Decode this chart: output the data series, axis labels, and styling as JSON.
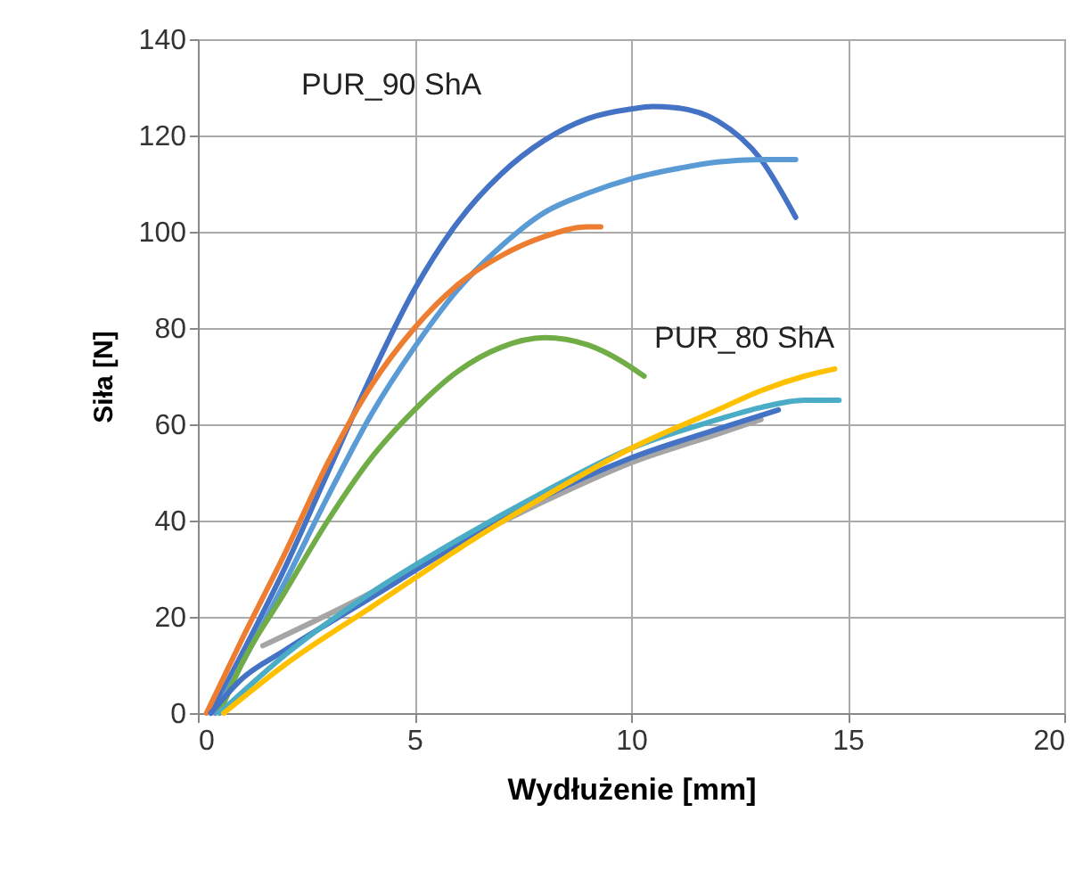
{
  "chart_data": {
    "type": "line",
    "xlabel": "Wydłużenie [mm]",
    "ylabel": "Siła [N]",
    "xlim": [
      0,
      20
    ],
    "xticks": [
      0,
      5,
      10,
      15,
      20
    ],
    "ylim": [
      0,
      140
    ],
    "yticks": [
      0,
      20,
      40,
      60,
      80,
      100,
      120,
      140
    ],
    "grid": true,
    "legend": false,
    "annotations": [
      "PUR_90 ShA",
      "PUR_80 ShA"
    ],
    "series": [
      {
        "color": "#4472c4",
        "x": [
          0.3,
          1,
          2,
          3,
          4,
          5,
          6,
          7,
          8,
          9,
          10,
          10.5,
          11,
          12,
          13,
          13.8
        ],
        "values": [
          0,
          12,
          30,
          50,
          70,
          88,
          102,
          112,
          119,
          123.5,
          125.5,
          126,
          125.8,
          123,
          115,
          103
        ]
      },
      {
        "color": "#5b9bd5",
        "x": [
          0.4,
          1,
          2,
          3,
          4,
          5,
          6,
          7,
          8,
          9,
          10,
          11,
          12,
          13,
          13.8
        ],
        "values": [
          0,
          10,
          27,
          45,
          62,
          76,
          88,
          97,
          104,
          108,
          111,
          113,
          114.5,
          115,
          115
        ]
      },
      {
        "color": "#ed7d31",
        "x": [
          0.2,
          1,
          2,
          3,
          4,
          5,
          6,
          7,
          8,
          9,
          9.3
        ],
        "values": [
          0,
          15,
          33,
          52,
          68,
          80,
          89,
          95,
          99,
          101,
          101
        ]
      },
      {
        "color": "#70ad47",
        "x": [
          0.5,
          1,
          2,
          3,
          4,
          5,
          6,
          7,
          8,
          9,
          9.8,
          10.3
        ],
        "values": [
          0,
          10,
          25,
          40,
          53,
          63,
          71,
          76,
          78,
          76.5,
          73,
          70
        ]
      },
      {
        "color": "#a5a5a5",
        "x": [
          1.5,
          4,
          6,
          8,
          10,
          12,
          13
        ],
        "values": [
          14,
          25,
          35,
          44,
          52,
          58,
          61
        ]
      },
      {
        "color": "#4472c4",
        "x": [
          0.3,
          1,
          2,
          4,
          6,
          8,
          10,
          12,
          13.4
        ],
        "values": [
          0,
          7,
          13,
          24,
          35,
          45,
          53,
          59,
          63
        ]
      },
      {
        "color": "#4bacc6",
        "x": [
          0.5,
          2,
          4,
          6,
          8,
          10,
          12,
          13,
          14,
          14.8
        ],
        "values": [
          0,
          12,
          25,
          36,
          46,
          55,
          61,
          63.5,
          65,
          65
        ]
      },
      {
        "color": "#ffc000",
        "x": [
          0.6,
          2,
          4,
          5,
          6,
          8,
          10,
          12,
          13,
          14,
          14.7
        ],
        "values": [
          0,
          10,
          22,
          28,
          34,
          45,
          55,
          63,
          67,
          70,
          71.5
        ]
      }
    ]
  }
}
